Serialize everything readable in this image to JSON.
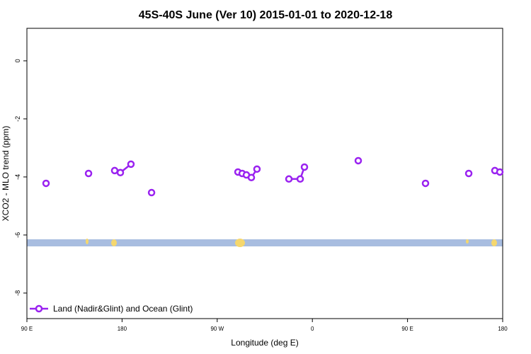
{
  "chart_data": {
    "type": "line",
    "title": "45S-40S June (Ver 10)   2015-01-01 to 2020-12-18",
    "x_label": "Longitude (deg E)",
    "y_label": "XCO2 - MLO trend (ppm)",
    "xlim": [
      90,
      540
    ],
    "xticks": [
      {
        "value": 90,
        "label": "90 E"
      },
      {
        "value": 180,
        "label": "180"
      },
      {
        "value": 270,
        "label": "90 W"
      },
      {
        "value": 360,
        "label": "0"
      },
      {
        "value": 450,
        "label": "90 E"
      },
      {
        "value": 540,
        "label": "180"
      }
    ],
    "ylim": [
      -8.88,
      1.12
    ],
    "yticks": [
      0,
      -2,
      -4,
      -6,
      -8
    ],
    "legend": "bottom-left",
    "series": [
      {
        "name": "Land (Nadir&Glint) and Ocean (Glint)",
        "color": "#9a22f0",
        "x": [
          108.1,
          148.3,
          173.0,
          178.4,
          188.4,
          207.9,
          289.6,
          293.6,
          297.6,
          302.3,
          307.6,
          337.8,
          348.5,
          352.5,
          403.4,
          467.0,
          507.9,
          532.6,
          537.3
        ],
        "values": [
          -4.22,
          -3.88,
          -3.78,
          -3.85,
          -3.56,
          -4.54,
          -3.83,
          -3.88,
          -3.93,
          -4.02,
          -3.73,
          -4.07,
          -4.07,
          -3.66,
          -3.44,
          -4.22,
          -3.88,
          -3.78,
          -3.83
        ]
      }
    ]
  }
}
